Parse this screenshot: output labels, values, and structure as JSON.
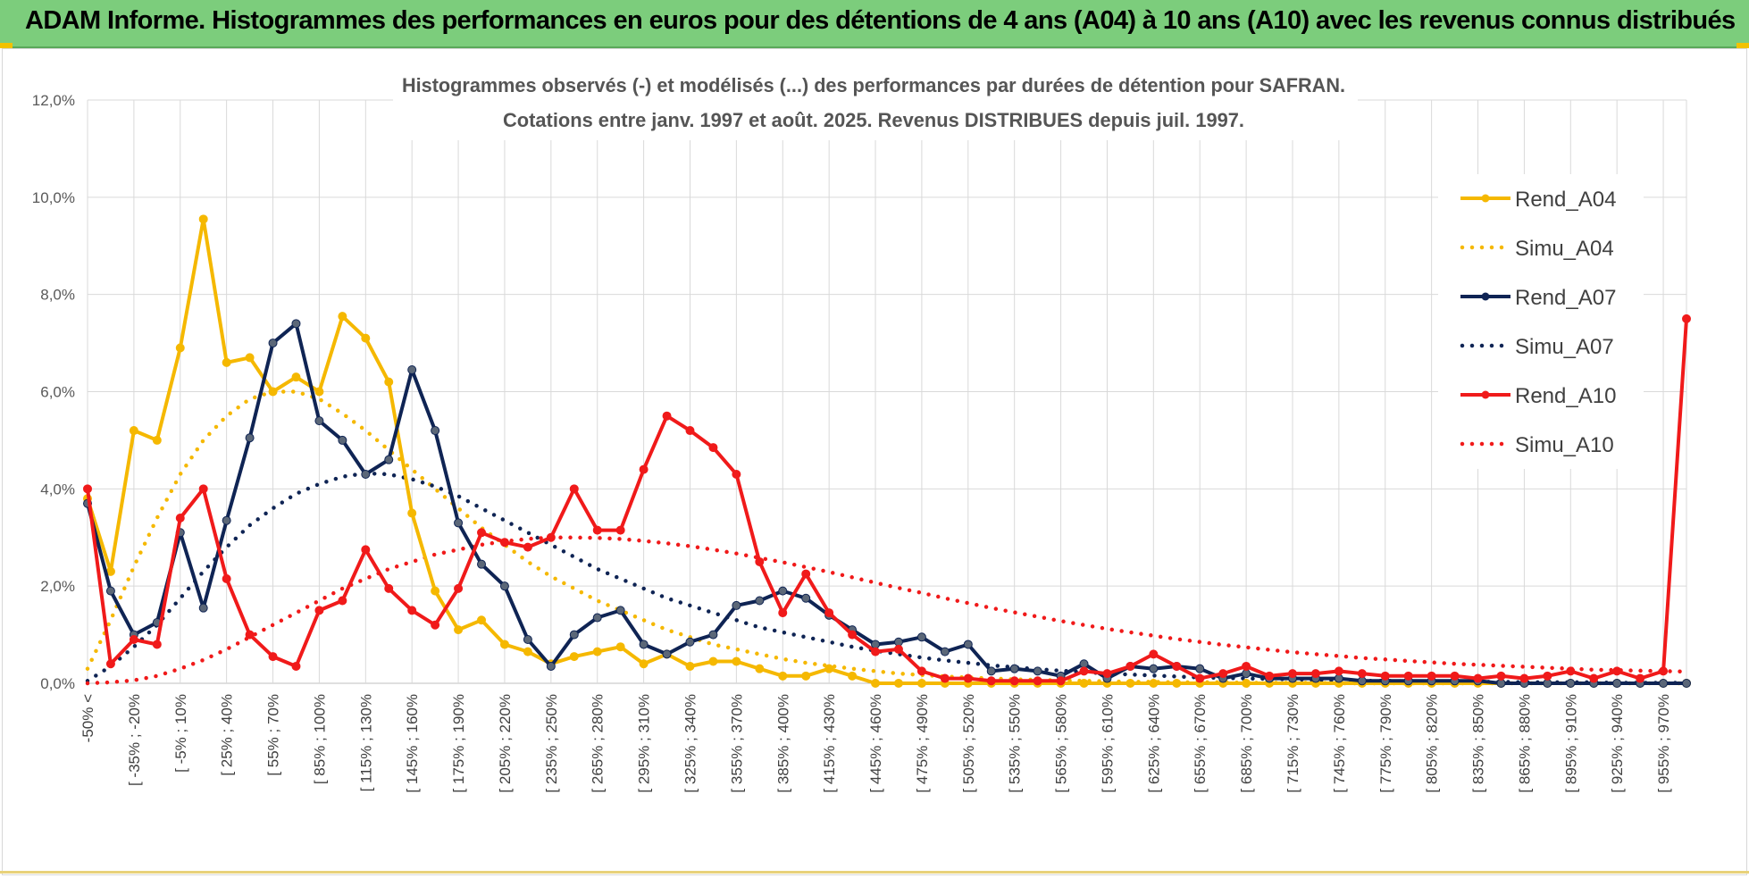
{
  "banner": {
    "title": "ADAM Informe. Histogrammes des performances en euros pour des détentions de 4 ans (A04) à 10 ans (A10) avec les revenus connus distribués"
  },
  "colors": {
    "banner_bg": "#7ccd7c",
    "A04": "#f5b800",
    "A07": "#0f2454",
    "A10": "#f01a1a",
    "grid": "#d9d9d9"
  },
  "chart_data": {
    "type": "line",
    "title": "Histogrammes observés (-) et modélisés (...) des performances par durées de détention pour SAFRAN.",
    "subtitle": "Cotations entre janv. 1997 et août. 2025. Revenus DISTRIBUES depuis juil. 1997.",
    "ylim": [
      0,
      12
    ],
    "yticks": [
      "0,0%",
      "2,0%",
      "4,0%",
      "6,0%",
      "8,0%",
      "10,0%",
      "12,0%"
    ],
    "grid": true,
    "legend_position": "right",
    "xticks": [
      "-50% <",
      "[ -35% ; -20%",
      "[ -5% ; 10%",
      "[ 25% ; 40%",
      "[ 55% ; 70%",
      "[ 85% ; 100%",
      "[ 115% ; 130%",
      "[ 145% ; 160%",
      "[ 175% ; 190%",
      "[ 205% ; 220%",
      "[ 235% ; 250%",
      "[ 265% ; 280%",
      "[ 295% ; 310%",
      "[ 325% ; 340%",
      "[ 355% ; 370%",
      "[ 385% ; 400%",
      "[ 415% ; 430%",
      "[ 445% ; 460%",
      "[ 475% ; 490%",
      "[ 505% ; 520%",
      "[ 535% ; 550%",
      "[ 565% ; 580%",
      "[ 595% ; 610%",
      "[ 625% ; 640%",
      "[ 655% ; 670%",
      "[ 685% ; 700%",
      "[ 715% ; 730%",
      "[ 745% ; 760%",
      "[ 775% ; 790%",
      "[ 805% ; 820%",
      "[ 835% ; 850%",
      "[ 865% ; 880%",
      "[ 895% ; 910%",
      "[ 925% ; 940%",
      "[ 955% ; 970%"
    ],
    "series": [
      {
        "name": "Rend_A04",
        "style": "solid",
        "color": "#f5b800",
        "values": [
          3.8,
          2.3,
          5.2,
          5.0,
          6.9,
          9.55,
          6.6,
          6.7,
          6.0,
          6.3,
          6.0,
          7.55,
          7.1,
          6.2,
          3.5,
          1.9,
          1.1,
          1.3,
          0.8,
          0.65,
          0.4,
          0.55,
          0.65,
          0.75,
          0.4,
          0.6,
          0.35,
          0.45,
          0.45,
          0.3,
          0.15,
          0.15,
          0.3,
          0.15,
          0.0,
          0.0,
          0.0,
          0.0,
          0.0,
          0.0,
          0.0,
          0.0,
          0.0,
          0.0,
          0.0,
          0.0,
          0.0,
          0.0,
          0.0,
          0.0,
          0.0,
          0.0,
          0.0,
          0.0,
          0.0,
          0.0,
          0.0,
          0.0,
          0.0,
          0.0,
          0.0,
          0.0,
          0.0,
          0.0,
          0.0,
          0.0,
          0.0,
          0.0,
          0.0,
          0.0
        ]
      },
      {
        "name": "Simu_A04",
        "style": "dotted",
        "color": "#f5b800",
        "values": [
          0.3,
          1.3,
          2.4,
          3.4,
          4.3,
          5.0,
          5.5,
          5.85,
          6.0,
          6.0,
          5.85,
          5.55,
          5.2,
          4.8,
          4.4,
          4.0,
          3.6,
          3.2,
          2.85,
          2.5,
          2.2,
          1.95,
          1.7,
          1.5,
          1.3,
          1.1,
          0.95,
          0.8,
          0.7,
          0.6,
          0.5,
          0.42,
          0.36,
          0.3,
          0.25,
          0.2,
          0.17,
          0.14,
          0.12,
          0.1,
          0.08,
          0.07,
          0.06,
          0.05,
          0.04,
          0.03,
          0.03,
          0.02,
          0.02,
          0.02,
          0.01,
          0.01,
          0.01,
          0.01,
          0.0,
          0.0,
          0.0,
          0.0,
          0.0,
          0.0,
          0.0,
          0.0,
          0.0,
          0.0,
          0.0,
          0.0,
          0.0,
          0.0,
          0.0,
          0.0
        ]
      },
      {
        "name": "Rend_A07",
        "style": "solid",
        "color": "#0f2454",
        "values": [
          3.7,
          1.9,
          1.0,
          1.25,
          3.1,
          1.55,
          3.35,
          5.05,
          7.0,
          7.4,
          5.4,
          5.0,
          4.3,
          4.6,
          6.45,
          5.2,
          3.3,
          2.45,
          2.0,
          0.9,
          0.35,
          1.0,
          1.35,
          1.5,
          0.8,
          0.6,
          0.85,
          1.0,
          1.6,
          1.7,
          1.9,
          1.75,
          1.4,
          1.1,
          0.8,
          0.85,
          0.95,
          0.65,
          0.8,
          0.25,
          0.3,
          0.25,
          0.15,
          0.4,
          0.1,
          0.35,
          0.3,
          0.35,
          0.3,
          0.1,
          0.2,
          0.1,
          0.1,
          0.1,
          0.1,
          0.05,
          0.05,
          0.05,
          0.05,
          0.05,
          0.05,
          0.0,
          0.0,
          0.0,
          0.0,
          0.0,
          0.0,
          0.0,
          0.0,
          0.0
        ]
      },
      {
        "name": "Simu_A07",
        "style": "dotted",
        "color": "#0f2454",
        "values": [
          0.05,
          0.35,
          0.75,
          1.2,
          1.75,
          2.3,
          2.8,
          3.25,
          3.6,
          3.9,
          4.1,
          4.25,
          4.32,
          4.3,
          4.2,
          4.05,
          3.85,
          3.6,
          3.35,
          3.1,
          2.85,
          2.6,
          2.35,
          2.15,
          1.95,
          1.75,
          1.6,
          1.45,
          1.3,
          1.15,
          1.05,
          0.95,
          0.85,
          0.75,
          0.67,
          0.6,
          0.53,
          0.47,
          0.42,
          0.37,
          0.33,
          0.29,
          0.26,
          0.23,
          0.2,
          0.18,
          0.16,
          0.14,
          0.12,
          0.11,
          0.1,
          0.09,
          0.08,
          0.07,
          0.06,
          0.05,
          0.05,
          0.04,
          0.04,
          0.03,
          0.03,
          0.03,
          0.02,
          0.02,
          0.02,
          0.02,
          0.01,
          0.01,
          0.01,
          0.01
        ]
      },
      {
        "name": "Rend_A10",
        "style": "solid",
        "color": "#f01a1a",
        "values": [
          4.0,
          0.4,
          0.9,
          0.8,
          3.4,
          4.0,
          2.15,
          1.0,
          0.55,
          0.35,
          1.5,
          1.7,
          2.75,
          1.95,
          1.5,
          1.2,
          1.95,
          3.1,
          2.9,
          2.8,
          3.0,
          4.0,
          3.15,
          3.15,
          4.4,
          5.5,
          5.2,
          4.85,
          4.3,
          2.5,
          1.45,
          2.25,
          1.45,
          1.0,
          0.65,
          0.7,
          0.25,
          0.1,
          0.1,
          0.05,
          0.05,
          0.05,
          0.05,
          0.25,
          0.2,
          0.35,
          0.6,
          0.35,
          0.1,
          0.2,
          0.35,
          0.15,
          0.2,
          0.2,
          0.25,
          0.2,
          0.15,
          0.15,
          0.15,
          0.15,
          0.1,
          0.15,
          0.1,
          0.15,
          0.25,
          0.1,
          0.25,
          0.1,
          0.25,
          7.5
        ]
      },
      {
        "name": "Simu_A10",
        "style": "dotted",
        "color": "#f01a1a",
        "values": [
          0.0,
          0.02,
          0.06,
          0.15,
          0.3,
          0.48,
          0.7,
          0.95,
          1.2,
          1.45,
          1.7,
          1.95,
          2.15,
          2.35,
          2.5,
          2.65,
          2.75,
          2.85,
          2.92,
          2.97,
          3.0,
          3.0,
          2.99,
          2.97,
          2.93,
          2.88,
          2.82,
          2.75,
          2.67,
          2.58,
          2.49,
          2.39,
          2.29,
          2.18,
          2.07,
          1.96,
          1.86,
          1.75,
          1.65,
          1.55,
          1.46,
          1.37,
          1.28,
          1.2,
          1.12,
          1.05,
          0.98,
          0.91,
          0.85,
          0.79,
          0.74,
          0.69,
          0.64,
          0.6,
          0.56,
          0.52,
          0.49,
          0.46,
          0.43,
          0.4,
          0.38,
          0.36,
          0.34,
          0.32,
          0.3,
          0.28,
          0.27,
          0.26,
          0.25,
          0.24
        ]
      }
    ]
  }
}
